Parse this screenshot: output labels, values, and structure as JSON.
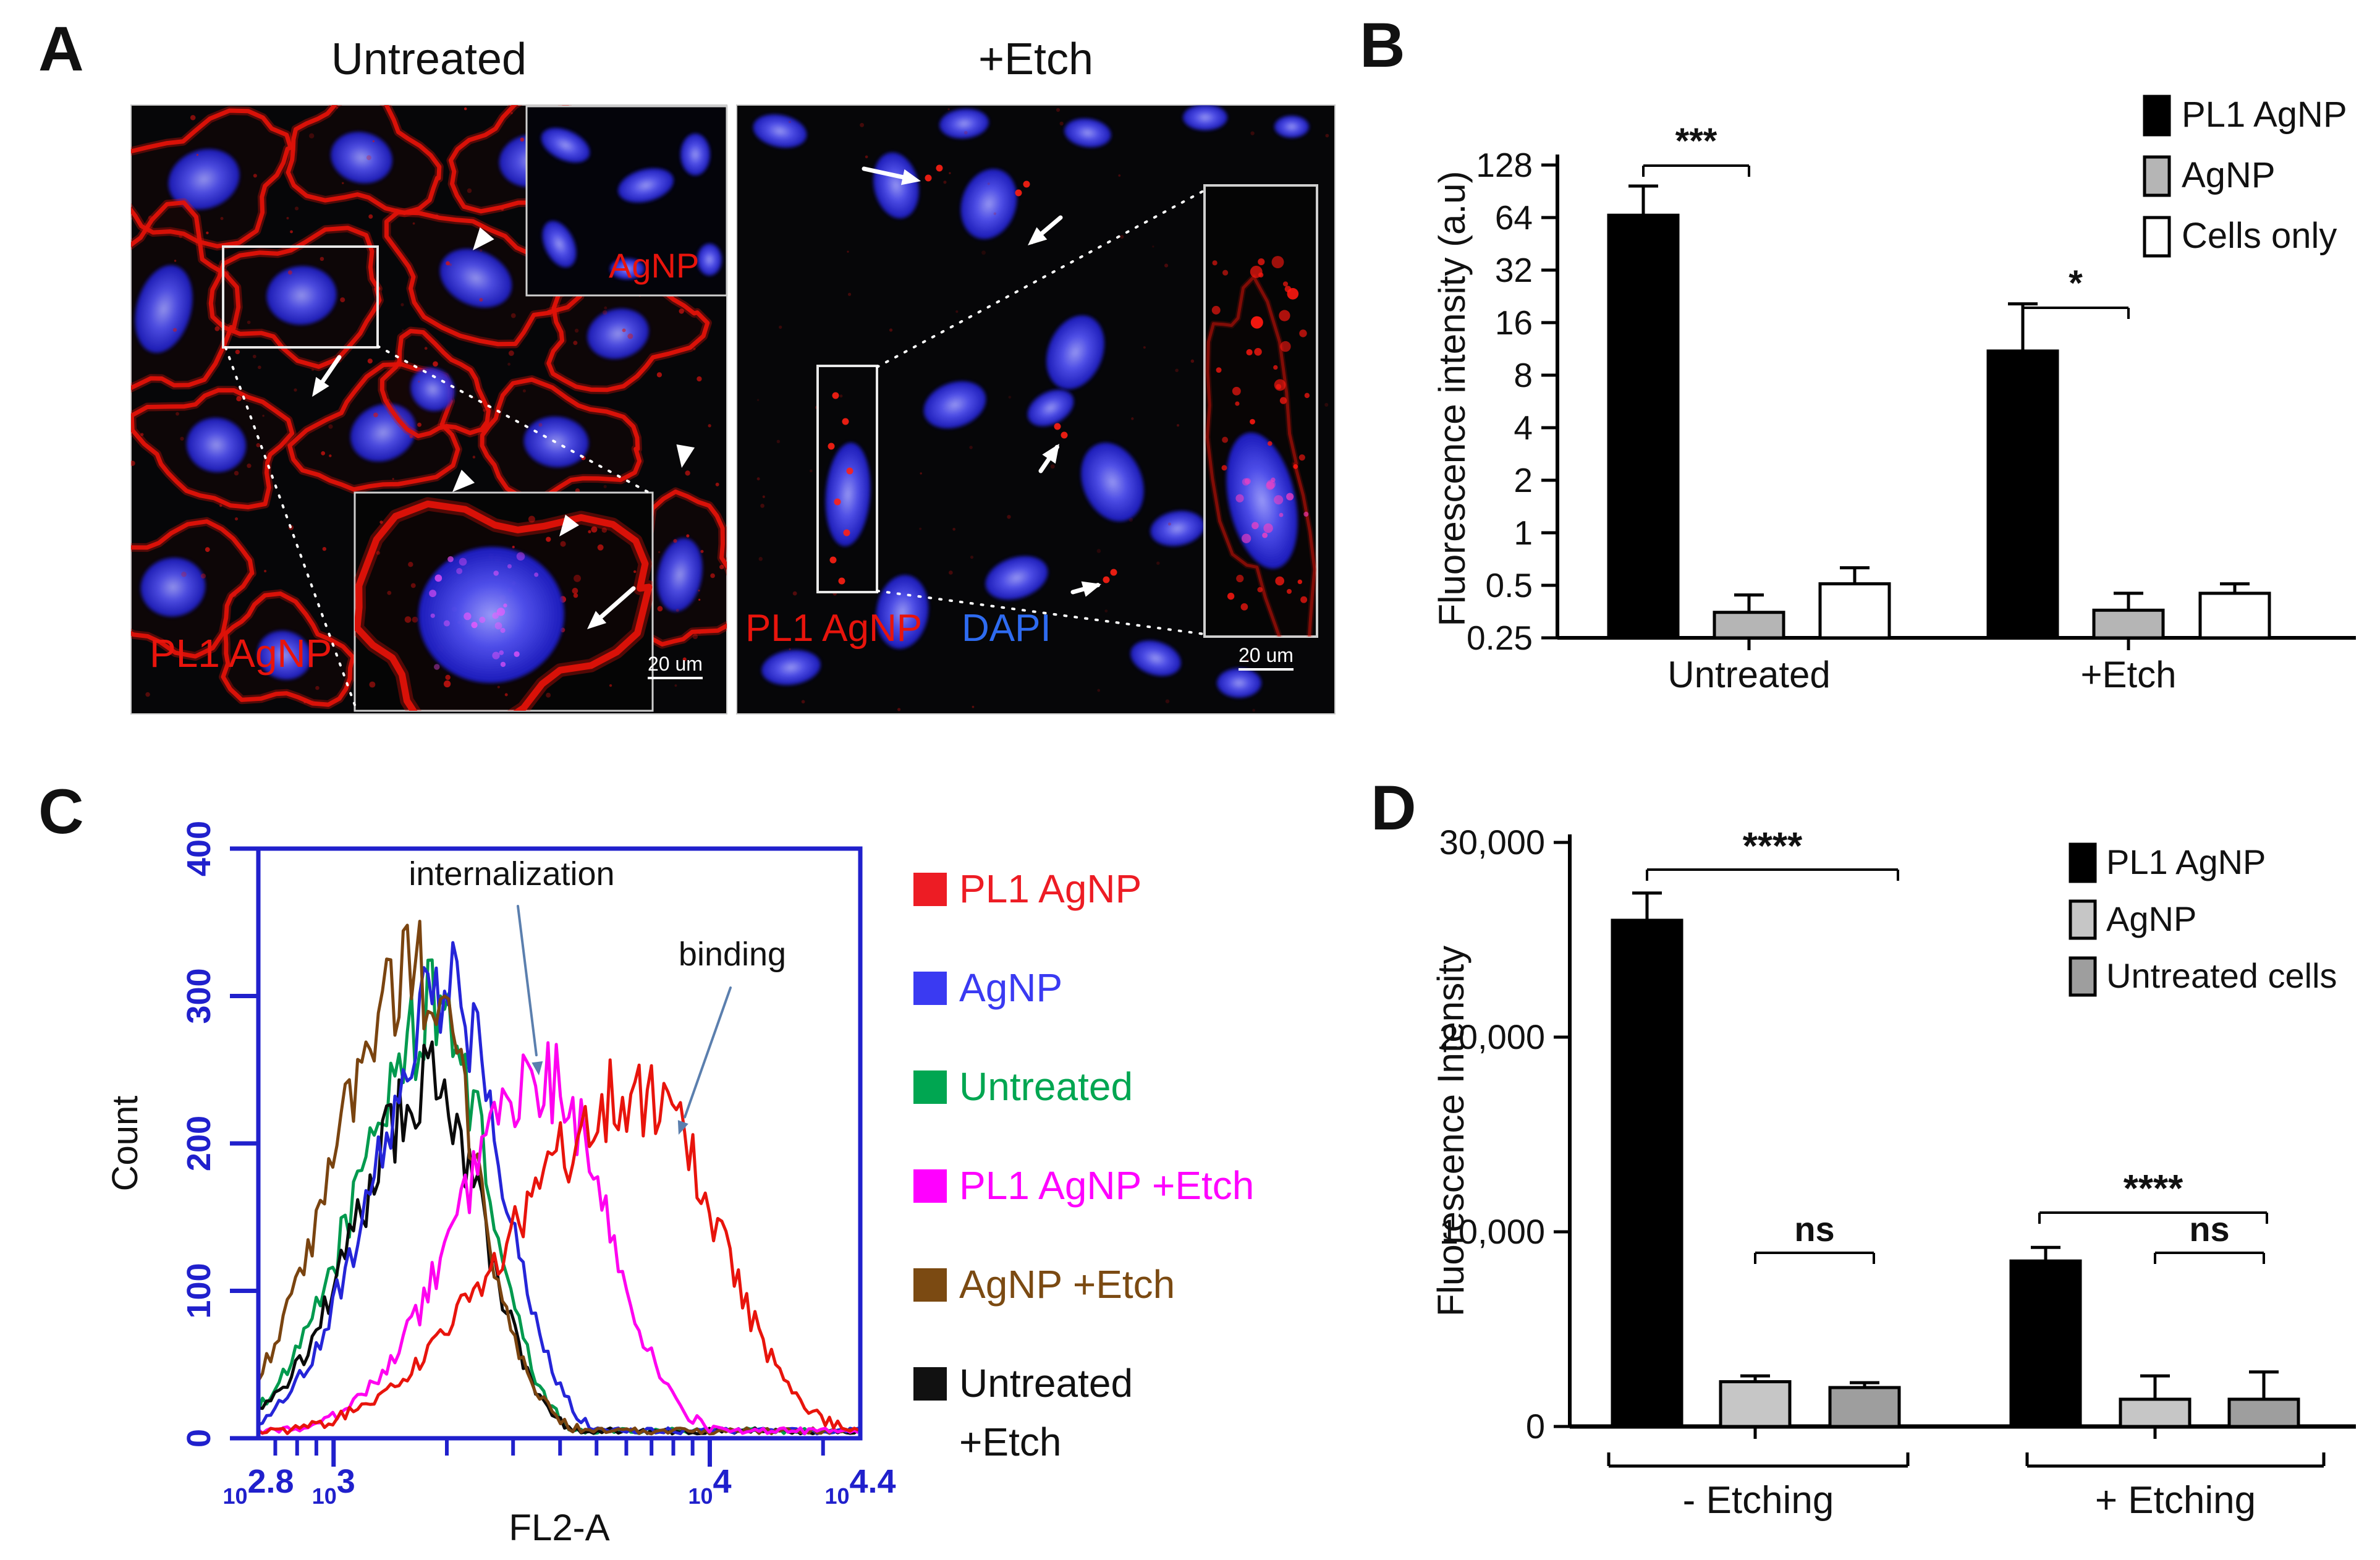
{
  "panels": {
    "a": "A",
    "b": "B",
    "c": "C",
    "d": "D"
  },
  "panel_a": {
    "left_title": "Untreated",
    "right_title": "+Etch",
    "left_main_label": "PL1 AgNP",
    "left_inset_label": "AgNP",
    "left_scale_label": "20 um",
    "right_main_label": "PL1 AgNP",
    "right_dapi_label": "DAPI",
    "right_scale_label": "20 um",
    "colors": {
      "membrane_red": "#e01208",
      "nucleus_blue": "#3b3bf0",
      "label_red": "#e8140c",
      "dapi_text": "#2e6bf0",
      "background": "#060608"
    }
  },
  "chart_data": [
    {
      "id": "B",
      "type": "bar",
      "yscale": "log2",
      "ylabel": "Fluorescence intensity (a.u)",
      "yticks": [
        "0.25",
        "0.5",
        "1",
        "2",
        "4",
        "8",
        "16",
        "32",
        "64",
        "128"
      ],
      "ylim": [
        0.25,
        128
      ],
      "categories": [
        "Untreated",
        "+Etch"
      ],
      "series": [
        {
          "name": "PL1 AgNP",
          "color": "#000000",
          "values": [
            66,
            11
          ],
          "error_up": [
            31,
            9.5
          ]
        },
        {
          "name": "AgNP",
          "color": "#b5b5b5",
          "values": [
            0.35,
            0.36
          ],
          "error_up": [
            0.09,
            0.09
          ]
        },
        {
          "name": "Cells only",
          "color": "#ffffff",
          "values": [
            0.51,
            0.45
          ],
          "error_up": [
            0.12,
            0.06
          ]
        }
      ],
      "significance": [
        {
          "label": "***",
          "category_index": 0,
          "series_span": [
            0,
            1
          ]
        },
        {
          "label": "*",
          "category_index": 1,
          "series_span": [
            0,
            1
          ]
        }
      ],
      "legend_position": "top-right"
    },
    {
      "id": "C",
      "type": "line",
      "xlabel": "FL2-A",
      "ylabel": "Count",
      "frame_color": "#2020cc",
      "ylim": [
        0,
        400
      ],
      "yticks": [
        "0",
        "100",
        "200",
        "300",
        "400"
      ],
      "x_log_range": [
        2.8,
        4.4
      ],
      "xticks": [
        {
          "mantissa": "10",
          "exponent": "2.8",
          "log": 2.8
        },
        {
          "mantissa": "10",
          "exponent": "3",
          "log": 3
        },
        {
          "mantissa": "10",
          "exponent": "4",
          "log": 4
        },
        {
          "mantissa": "10",
          "exponent": "4.4",
          "log": 4.4
        }
      ],
      "annotations": [
        {
          "text": "internalization",
          "points_to": "PL1 AgNP +Etch peak"
        },
        {
          "text": "binding",
          "points_to": "PL1 AgNP peak"
        }
      ],
      "series": [
        {
          "name": "PL1 AgNP",
          "color": "#e8140c",
          "peak_log": 3.82,
          "peak_count": 235,
          "sigma_left": 0.34,
          "sigma_right": 0.2
        },
        {
          "name": "AgNP",
          "color": "#2525d8",
          "peak_log": 3.31,
          "peak_count": 305,
          "sigma_left": 0.2,
          "sigma_right": 0.14
        },
        {
          "name": "Untreated",
          "color": "#009a4e",
          "peak_log": 3.28,
          "peak_count": 290,
          "sigma_left": 0.21,
          "sigma_right": 0.13
        },
        {
          "name": "PL1 AgNP +Etch",
          "color": "#ff00f0",
          "peak_log": 3.57,
          "peak_count": 242,
          "sigma_left": 0.24,
          "sigma_right": 0.16
        },
        {
          "name": "AgNP +Etch",
          "color": "#7a4410",
          "peak_log": 3.22,
          "peak_count": 320,
          "sigma_left": 0.21,
          "sigma_right": 0.15
        },
        {
          "name": "Untreated +Etch",
          "color": "#0a0a0a",
          "peak_log": 3.26,
          "peak_count": 240,
          "sigma_left": 0.2,
          "sigma_right": 0.14
        }
      ],
      "legend": [
        {
          "label": "PL1 AgNP",
          "color": "#ed1c24"
        },
        {
          "label": "AgNP",
          "color": "#3a3af2"
        },
        {
          "label": "Untreated",
          "color": "#00a651"
        },
        {
          "label": "PL1 AgNP +Etch",
          "color": "#ff00ff"
        },
        {
          "label": "AgNP +Etch",
          "color": "#7b4a12"
        },
        {
          "label": "Untreated",
          "label2": "+Etch",
          "color": "#111111"
        }
      ]
    },
    {
      "id": "D",
      "type": "bar",
      "yscale": "linear",
      "ylabel": "Fluorescence Intensity",
      "yticks": [
        {
          "value": 0,
          "label": "0"
        },
        {
          "value": 10000,
          "label": "10,000"
        },
        {
          "value": 20000,
          "label": "20,000"
        },
        {
          "value": 30000,
          "label": "30,000"
        }
      ],
      "ylim": [
        0,
        30000
      ],
      "categories": [
        "- Etching",
        "+ Etching"
      ],
      "series": [
        {
          "name": "PL1 AgNP",
          "color": "#000000",
          "values": [
            26000,
            8500
          ],
          "error_up": [
            1400,
            700
          ]
        },
        {
          "name": "AgNP",
          "color": "#c6c6c6",
          "values": [
            2300,
            1400
          ],
          "error_up": [
            300,
            1200
          ]
        },
        {
          "name": "Untreated cells",
          "color": "#9e9e9e",
          "values": [
            2000,
            1400
          ],
          "error_up": [
            250,
            1400
          ]
        }
      ],
      "significance": [
        {
          "label": "****",
          "category_index": 0,
          "series_span": [
            0,
            2
          ]
        },
        {
          "label": "ns",
          "category_index": 0,
          "series_span": [
            1,
            2
          ]
        },
        {
          "label": "****",
          "category_index": 1,
          "series_span": [
            0,
            2
          ]
        },
        {
          "label": "ns",
          "category_index": 1,
          "series_span": [
            1,
            2
          ]
        }
      ],
      "legend_position": "top-right"
    }
  ]
}
